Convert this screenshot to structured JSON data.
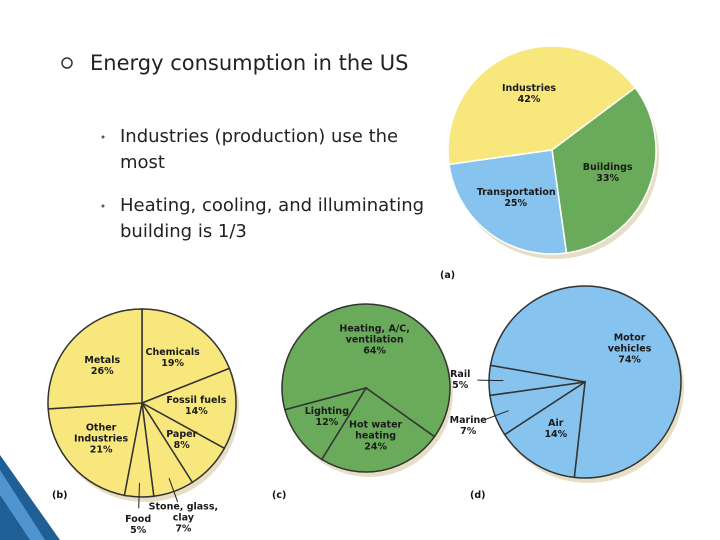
{
  "slide": {
    "title": "Energy consumption in the US",
    "bullets": [
      "Industries (production) use the most",
      "Heating, cooling, and illuminating building is 1/3"
    ]
  },
  "chart_data": [
    {
      "type": "pie",
      "label": "(a)",
      "categories": [
        "Industries",
        "Buildings",
        "Transportation"
      ],
      "values": [
        42,
        33,
        25
      ],
      "value_labels": [
        "42%",
        "33%",
        "25%"
      ],
      "colors": [
        "#f8e77c",
        "#6aaa5b",
        "#86c3ee"
      ]
    },
    {
      "type": "pie",
      "label": "(b)",
      "categories": [
        "Chemicals",
        "Fossil fuels",
        "Paper",
        "Stone, glass, clay",
        "Food",
        "Other Industries",
        "Metals"
      ],
      "values": [
        19,
        14,
        8,
        7,
        5,
        21,
        26
      ],
      "value_labels": [
        "19%",
        "14%",
        "8%",
        "7%",
        "5%",
        "21%",
        "26%"
      ],
      "colors": [
        "#f8e77c",
        "#f8e77c",
        "#f8e77c",
        "#f8e77c",
        "#f8e77c",
        "#f8e77c",
        "#f8e77c"
      ]
    },
    {
      "type": "pie",
      "label": "(c)",
      "categories": [
        "Heating, A/C, ventilation",
        "Hot water heating",
        "Lighting"
      ],
      "values": [
        64,
        24,
        12
      ],
      "value_labels": [
        "64%",
        "24%",
        "12%"
      ],
      "colors": [
        "#6aaa5b",
        "#6aaa5b",
        "#6aaa5b"
      ]
    },
    {
      "type": "pie",
      "label": "(d)",
      "categories": [
        "Motor vehicles",
        "Air",
        "Marine",
        "Rail"
      ],
      "values": [
        74,
        14,
        7,
        5
      ],
      "value_labels": [
        "74%",
        "14%",
        "7%",
        "5%"
      ],
      "colors": [
        "#86c3ee",
        "#86c3ee",
        "#86c3ee",
        "#86c3ee"
      ]
    }
  ]
}
